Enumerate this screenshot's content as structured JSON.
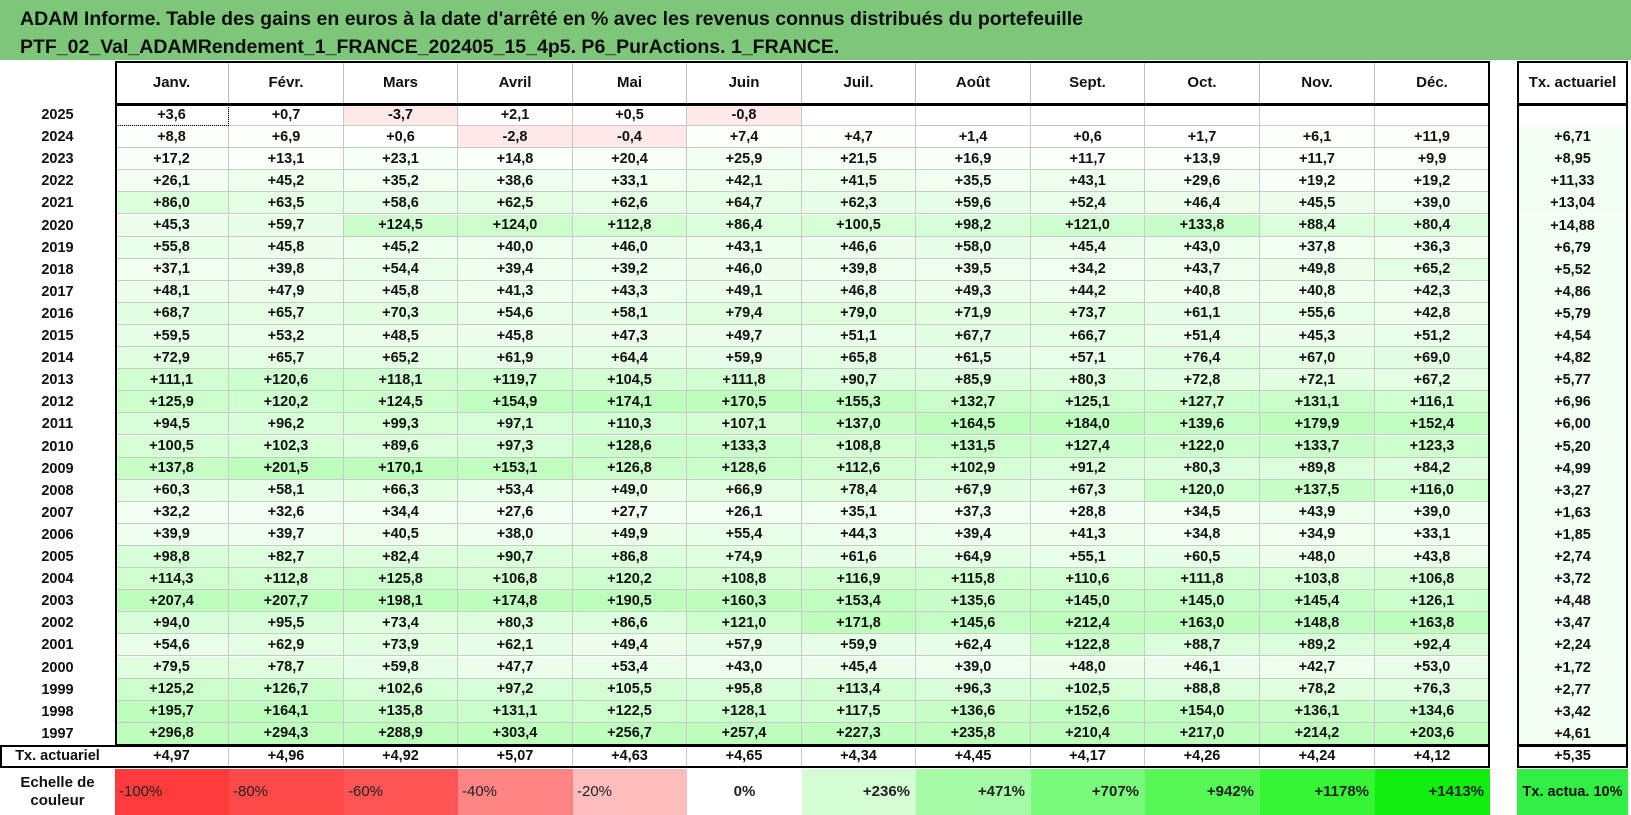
{
  "title": {
    "line1": "ADAM Informe. Table des gains en euros à la date d'arrêté en % avec les revenus connus distribués du portefeuille",
    "line2": "PTF_02_Val_ADAMRendement_1_FRANCE_202405_15_4p5. P6_PurActions. 1_FRANCE."
  },
  "months": [
    "Janv.",
    "Févr.",
    "Mars",
    "Avril",
    "Mai",
    "Juin",
    "Juil.",
    "Août",
    "Sept.",
    "Oct.",
    "Nov.",
    "Déc."
  ],
  "rate_header": "Tx. actuariel",
  "rows": [
    {
      "year": "2025",
      "values": [
        "+3,6",
        "+0,7",
        "-3,7",
        "+2,1",
        "+0,5",
        "-0,8",
        "",
        "",
        "",
        "",
        "",
        ""
      ],
      "rate": ""
    },
    {
      "year": "2024",
      "values": [
        "+8,8",
        "+6,9",
        "+0,6",
        "-2,8",
        "-0,4",
        "+7,4",
        "+4,7",
        "+1,4",
        "+0,6",
        "+1,7",
        "+6,1",
        "+11,9"
      ],
      "rate": "+6,71"
    },
    {
      "year": "2023",
      "values": [
        "+17,2",
        "+13,1",
        "+23,1",
        "+14,8",
        "+20,4",
        "+25,9",
        "+21,5",
        "+16,9",
        "+11,7",
        "+13,9",
        "+11,7",
        "+9,9"
      ],
      "rate": "+8,95"
    },
    {
      "year": "2022",
      "values": [
        "+26,1",
        "+45,2",
        "+35,2",
        "+38,6",
        "+33,1",
        "+42,1",
        "+41,5",
        "+35,5",
        "+43,1",
        "+29,6",
        "+19,2",
        "+19,2"
      ],
      "rate": "+11,33"
    },
    {
      "year": "2021",
      "values": [
        "+86,0",
        "+63,5",
        "+58,6",
        "+62,5",
        "+62,6",
        "+64,7",
        "+62,3",
        "+59,6",
        "+52,4",
        "+46,4",
        "+45,5",
        "+39,0"
      ],
      "rate": "+13,04"
    },
    {
      "year": "2020",
      "values": [
        "+45,3",
        "+59,7",
        "+124,5",
        "+124,0",
        "+112,8",
        "+86,4",
        "+100,5",
        "+98,2",
        "+121,0",
        "+133,8",
        "+88,4",
        "+80,4"
      ],
      "rate": "+14,88"
    },
    {
      "year": "2019",
      "values": [
        "+55,8",
        "+45,8",
        "+45,2",
        "+40,0",
        "+46,0",
        "+43,1",
        "+46,6",
        "+58,0",
        "+45,4",
        "+43,0",
        "+37,8",
        "+36,3"
      ],
      "rate": "+6,79"
    },
    {
      "year": "2018",
      "values": [
        "+37,1",
        "+39,8",
        "+54,4",
        "+39,4",
        "+39,2",
        "+46,0",
        "+39,8",
        "+39,5",
        "+34,2",
        "+43,7",
        "+49,8",
        "+65,2"
      ],
      "rate": "+5,52"
    },
    {
      "year": "2017",
      "values": [
        "+48,1",
        "+47,9",
        "+45,8",
        "+41,3",
        "+43,3",
        "+49,1",
        "+46,8",
        "+49,3",
        "+44,2",
        "+40,8",
        "+40,8",
        "+42,3"
      ],
      "rate": "+4,86"
    },
    {
      "year": "2016",
      "values": [
        "+68,7",
        "+65,7",
        "+70,3",
        "+54,6",
        "+58,1",
        "+79,4",
        "+79,0",
        "+71,9",
        "+73,7",
        "+61,1",
        "+55,6",
        "+42,8"
      ],
      "rate": "+5,79"
    },
    {
      "year": "2015",
      "values": [
        "+59,5",
        "+53,2",
        "+48,5",
        "+45,8",
        "+47,3",
        "+49,7",
        "+51,1",
        "+67,7",
        "+66,7",
        "+51,4",
        "+45,3",
        "+51,2"
      ],
      "rate": "+4,54"
    },
    {
      "year": "2014",
      "values": [
        "+72,9",
        "+65,7",
        "+65,2",
        "+61,9",
        "+64,4",
        "+59,9",
        "+65,8",
        "+61,5",
        "+57,1",
        "+76,4",
        "+67,0",
        "+69,0"
      ],
      "rate": "+4,82"
    },
    {
      "year": "2013",
      "values": [
        "+111,1",
        "+120,6",
        "+118,1",
        "+119,7",
        "+104,5",
        "+111,8",
        "+90,7",
        "+85,9",
        "+80,3",
        "+72,8",
        "+72,1",
        "+67,2"
      ],
      "rate": "+5,77"
    },
    {
      "year": "2012",
      "values": [
        "+125,9",
        "+120,2",
        "+124,5",
        "+154,9",
        "+174,1",
        "+170,5",
        "+155,3",
        "+132,7",
        "+125,1",
        "+127,7",
        "+131,1",
        "+116,1"
      ],
      "rate": "+6,96"
    },
    {
      "year": "2011",
      "values": [
        "+94,5",
        "+96,2",
        "+99,3",
        "+97,1",
        "+110,3",
        "+107,1",
        "+137,0",
        "+164,5",
        "+184,0",
        "+139,6",
        "+179,9",
        "+152,4"
      ],
      "rate": "+6,00"
    },
    {
      "year": "2010",
      "values": [
        "+100,5",
        "+102,3",
        "+89,6",
        "+97,3",
        "+128,6",
        "+133,3",
        "+108,8",
        "+131,5",
        "+127,4",
        "+122,0",
        "+133,7",
        "+123,3"
      ],
      "rate": "+5,20"
    },
    {
      "year": "2009",
      "values": [
        "+137,8",
        "+201,5",
        "+170,1",
        "+153,1",
        "+126,8",
        "+128,6",
        "+112,6",
        "+102,9",
        "+91,2",
        "+80,3",
        "+89,8",
        "+84,2"
      ],
      "rate": "+4,99"
    },
    {
      "year": "2008",
      "values": [
        "+60,3",
        "+58,1",
        "+66,3",
        "+53,4",
        "+49,0",
        "+66,9",
        "+78,4",
        "+67,9",
        "+67,3",
        "+120,0",
        "+137,5",
        "+116,0"
      ],
      "rate": "+3,27"
    },
    {
      "year": "2007",
      "values": [
        "+32,2",
        "+32,6",
        "+34,4",
        "+27,6",
        "+27,7",
        "+26,1",
        "+35,1",
        "+37,3",
        "+28,8",
        "+34,5",
        "+43,9",
        "+39,0"
      ],
      "rate": "+1,63"
    },
    {
      "year": "2006",
      "values": [
        "+39,9",
        "+39,7",
        "+40,5",
        "+38,0",
        "+49,9",
        "+55,4",
        "+44,3",
        "+39,4",
        "+41,3",
        "+34,8",
        "+34,9",
        "+33,1"
      ],
      "rate": "+1,85"
    },
    {
      "year": "2005",
      "values": [
        "+98,8",
        "+82,7",
        "+82,4",
        "+90,7",
        "+86,8",
        "+74,9",
        "+61,6",
        "+64,9",
        "+55,1",
        "+60,5",
        "+48,0",
        "+43,8"
      ],
      "rate": "+2,74"
    },
    {
      "year": "2004",
      "values": [
        "+114,3",
        "+112,8",
        "+125,8",
        "+106,8",
        "+120,2",
        "+108,8",
        "+116,9",
        "+115,8",
        "+110,6",
        "+111,8",
        "+103,8",
        "+106,8"
      ],
      "rate": "+3,72"
    },
    {
      "year": "2003",
      "values": [
        "+207,4",
        "+207,7",
        "+198,1",
        "+174,8",
        "+190,5",
        "+160,3",
        "+153,4",
        "+135,6",
        "+145,0",
        "+145,0",
        "+145,4",
        "+126,1"
      ],
      "rate": "+4,48"
    },
    {
      "year": "2002",
      "values": [
        "+94,0",
        "+95,5",
        "+73,4",
        "+80,3",
        "+86,6",
        "+121,0",
        "+171,8",
        "+145,6",
        "+212,4",
        "+163,0",
        "+148,8",
        "+163,8"
      ],
      "rate": "+3,47"
    },
    {
      "year": "2001",
      "values": [
        "+54,6",
        "+62,9",
        "+73,9",
        "+62,1",
        "+49,4",
        "+57,9",
        "+59,9",
        "+62,4",
        "+122,8",
        "+88,7",
        "+89,2",
        "+92,4"
      ],
      "rate": "+2,24"
    },
    {
      "year": "2000",
      "values": [
        "+79,5",
        "+78,7",
        "+59,8",
        "+47,7",
        "+53,4",
        "+43,0",
        "+45,4",
        "+39,0",
        "+48,0",
        "+46,1",
        "+42,7",
        "+53,0"
      ],
      "rate": "+1,72"
    },
    {
      "year": "1999",
      "values": [
        "+125,2",
        "+126,7",
        "+102,6",
        "+97,2",
        "+105,5",
        "+95,8",
        "+113,4",
        "+96,3",
        "+102,5",
        "+88,8",
        "+78,2",
        "+76,3"
      ],
      "rate": "+2,77"
    },
    {
      "year": "1998",
      "values": [
        "+195,7",
        "+164,1",
        "+135,8",
        "+131,1",
        "+122,5",
        "+128,1",
        "+117,5",
        "+136,6",
        "+152,6",
        "+154,0",
        "+136,1",
        "+134,6"
      ],
      "rate": "+3,42"
    },
    {
      "year": "1997",
      "values": [
        "+296,8",
        "+294,3",
        "+288,9",
        "+303,4",
        "+256,7",
        "+257,4",
        "+227,3",
        "+235,8",
        "+210,4",
        "+217,0",
        "+214,2",
        "+203,6"
      ],
      "rate": "+4,61"
    }
  ],
  "totals": {
    "label": "Tx. actuariel",
    "values": [
      "+4,97",
      "+4,96",
      "+4,92",
      "+5,07",
      "+4,63",
      "+4,65",
      "+4,34",
      "+4,45",
      "+4,17",
      "+4,26",
      "+4,24",
      "+4,12"
    ],
    "rate": "+5,35"
  },
  "scale": {
    "label": "Echelle de couleur",
    "items": [
      {
        "label": "-100%",
        "color": "#ff3b3b"
      },
      {
        "label": "-80%",
        "color": "#ff4a4a"
      },
      {
        "label": "-60%",
        "color": "#ff5555"
      },
      {
        "label": "-40%",
        "color": "#ff8585"
      },
      {
        "label": "-20%",
        "color": "#ffbcbc"
      },
      {
        "label": "0%",
        "color": "#ffffff"
      },
      {
        "label": "+236%",
        "color": "#d4fdd4"
      },
      {
        "label": "+471%",
        "color": "#a6fca6"
      },
      {
        "label": "+707%",
        "color": "#7bfb7b"
      },
      {
        "label": "+942%",
        "color": "#55f855"
      },
      {
        "label": "+1178%",
        "color": "#35f535"
      },
      {
        "label": "+1413%",
        "color": "#10ee10"
      }
    ],
    "rate_label": "Tx. actua. 10%",
    "rate_color": "#33ee44"
  },
  "colors": {
    "title_bg": "#7dc67a",
    "negative_tint": "#ffe8e8"
  }
}
